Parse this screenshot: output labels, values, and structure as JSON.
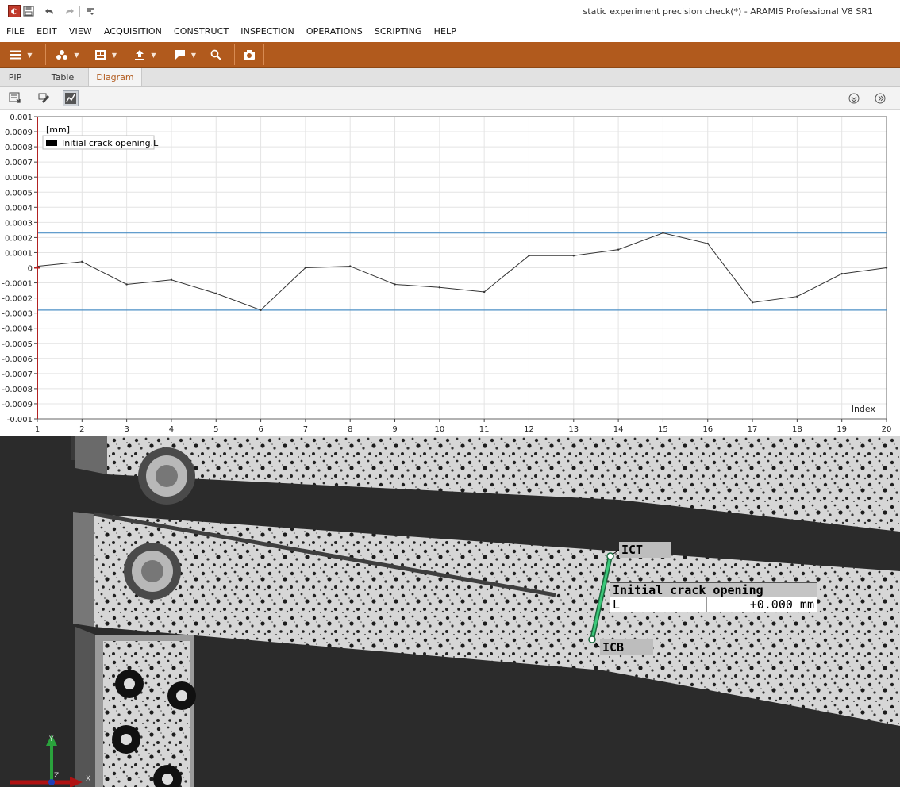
{
  "window": {
    "title": "static experiment precision check(*) - ARAMIS Professional V8 SR1"
  },
  "quick_access": {
    "icons": [
      "app-logo-icon",
      "save-icon",
      "undo-icon",
      "redo-icon",
      "customize-icon"
    ]
  },
  "menu": [
    "FILE",
    "EDIT",
    "VIEW",
    "ACQUISITION",
    "CONSTRUCT",
    "INSPECTION",
    "OPERATIONS",
    "SCRIPTING",
    "HELP"
  ],
  "toolbar": {
    "accent_color": "#b15a1d",
    "buttons": [
      "hamburger-menu-icon",
      "components-icon",
      "window-icon",
      "export-icon",
      "report-icon",
      "search-icon",
      "camera-icon"
    ]
  },
  "tabs": [
    {
      "label": "PIP",
      "active": false
    },
    {
      "label": "Table",
      "active": false
    },
    {
      "label": "Diagram",
      "active": true
    }
  ],
  "diagram_tools": [
    "diagram-export-icon",
    "diagram-edit-icon",
    "diagram-view-icon"
  ],
  "chart_data": {
    "type": "line",
    "unit_label": "[mm]",
    "xlabel": "Index",
    "legend": "Initial crack opening.L",
    "legend_position": "top-left",
    "grid": true,
    "x": [
      1,
      2,
      3,
      4,
      5,
      6,
      7,
      8,
      9,
      10,
      11,
      12,
      13,
      14,
      15,
      16,
      17,
      18,
      19,
      20
    ],
    "xlim": [
      1,
      20
    ],
    "ylim": [
      -0.001,
      0.001
    ],
    "y_ticks": [
      "0.001",
      "0.0009",
      "0.0008",
      "0.0007",
      "0.0006",
      "0.0005",
      "0.0004",
      "0.0003",
      "0.0002",
      "0.0001",
      "0",
      "-0.0001",
      "-0.0002",
      "-0.0003",
      "-0.0004",
      "-0.0005",
      "-0.0006",
      "-0.0007",
      "-0.0008",
      "-0.0009",
      "-0.001"
    ],
    "series": [
      {
        "values": [
          1e-05,
          4e-05,
          -0.00011,
          -8e-05,
          -0.00017,
          -0.00028,
          0.0,
          1e-05,
          -0.00011,
          -0.00013,
          -0.00016,
          8e-05,
          8e-05,
          0.00012,
          0.00023,
          0.00016,
          -0.00023,
          -0.00019,
          -4e-05,
          0.0
        ],
        "color": "#333333"
      }
    ],
    "reference_lines": [
      {
        "value": 0.00023,
        "color": "#4b8fc6"
      },
      {
        "value": -0.00028,
        "color": "#4b8fc6"
      }
    ]
  },
  "overlay": {
    "point_top": "ICT",
    "point_bottom": "ICB",
    "measure_title": "Initial crack opening",
    "measure_key": "L",
    "measure_value": "+0.000 mm",
    "line_color": "#3cc97a"
  },
  "axis_triad": {
    "y": "Y",
    "z": "Z",
    "x": "X"
  }
}
